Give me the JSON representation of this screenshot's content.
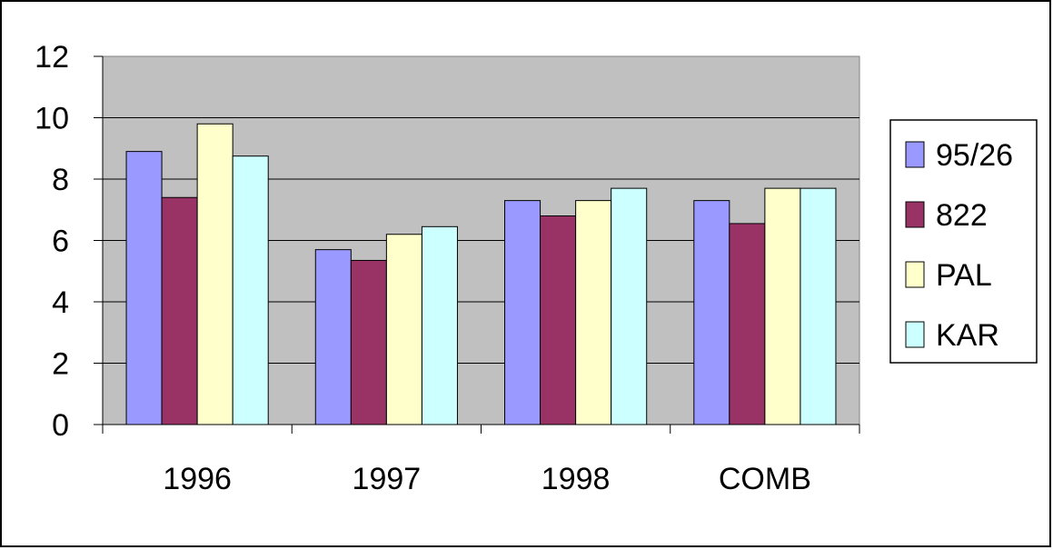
{
  "chart_data": {
    "type": "bar",
    "title": "",
    "xlabel": "",
    "ylabel": "",
    "categories": [
      "1996",
      "1997",
      "1998",
      "COMB"
    ],
    "series": [
      {
        "name": "95/26",
        "values": [
          8.9,
          5.7,
          7.3,
          7.3
        ],
        "color": "#9999ff"
      },
      {
        "name": "822",
        "values": [
          7.4,
          5.35,
          6.8,
          6.55
        ],
        "color": "#993366"
      },
      {
        "name": "PAL",
        "values": [
          9.8,
          6.2,
          7.3,
          7.7
        ],
        "color": "#ffffcc"
      },
      {
        "name": "KAR",
        "values": [
          8.75,
          6.45,
          7.7,
          7.7
        ],
        "color": "#ccffff"
      }
    ],
    "ylim": [
      0,
      12
    ],
    "yticks": [
      0,
      2,
      4,
      6,
      8,
      10,
      12
    ],
    "grid": true,
    "legend_position": "right",
    "plot_background": "#c0c0c0"
  }
}
